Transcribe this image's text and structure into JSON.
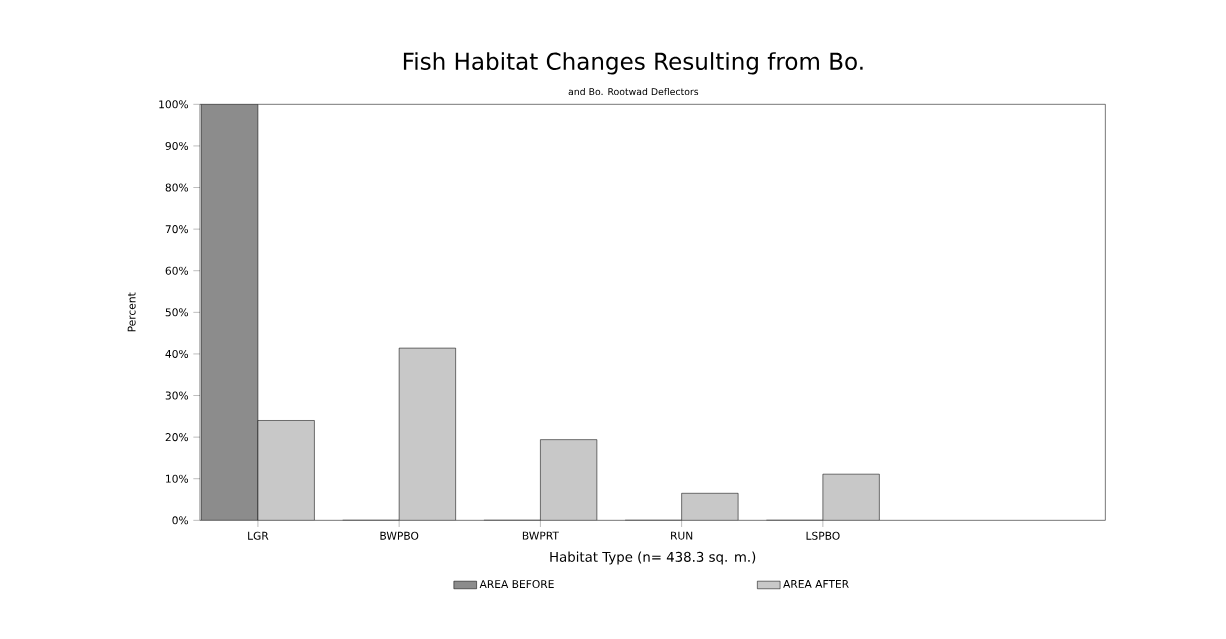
{
  "chart_data": {
    "type": "bar",
    "title": "Fish Habitat Changes Resulting from Bo.",
    "subtitle": "and Bo. Rootwad Deflectors",
    "xlabel": "Habitat Type (n= 438.3 sq. m.)",
    "ylabel": "Percent",
    "categories": [
      "LGR",
      "BWPBO",
      "BWPRT",
      "RUN",
      "LSPBO"
    ],
    "series": [
      {
        "name": "AREA BEFORE",
        "color": "#8c8c8c",
        "values": [
          100,
          0,
          0,
          0,
          0
        ]
      },
      {
        "name": "AREA AFTER",
        "color": "#c8c8c8",
        "values": [
          24,
          41.4,
          19.4,
          6.5,
          11.1
        ]
      }
    ],
    "ylim": [
      0,
      100
    ],
    "yticks": [
      {
        "value": 0,
        "label": "0%"
      },
      {
        "value": 10,
        "label": "10%"
      },
      {
        "value": 20,
        "label": "20%"
      },
      {
        "value": 30,
        "label": "30%"
      },
      {
        "value": 40,
        "label": "40%"
      },
      {
        "value": 50,
        "label": "50%"
      },
      {
        "value": 60,
        "label": "60%"
      },
      {
        "value": 70,
        "label": "70%"
      },
      {
        "value": 80,
        "label": "80%"
      },
      {
        "value": 90,
        "label": "90%"
      },
      {
        "value": 100,
        "label": "100%"
      }
    ],
    "legend": "bottom",
    "grid": false
  }
}
